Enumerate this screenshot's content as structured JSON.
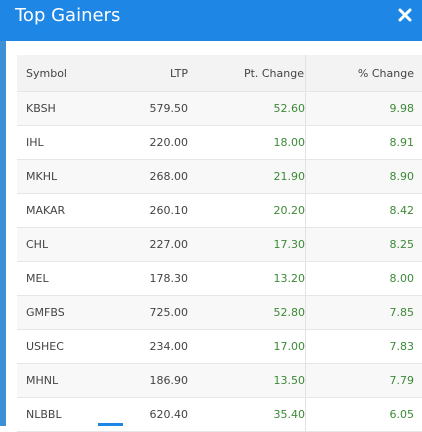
{
  "modal": {
    "title": "Top Gainers"
  },
  "colors": {
    "header": "#1e87e5",
    "gain": "#3c8a36"
  },
  "table": {
    "headers": [
      "Symbol",
      "LTP",
      "Pt. Change",
      "% Change"
    ],
    "rows": [
      [
        "KBSH",
        "579.50",
        "52.60",
        "9.98"
      ],
      [
        "IHL",
        "220.00",
        "18.00",
        "8.91"
      ],
      [
        "MKHL",
        "268.00",
        "21.90",
        "8.90"
      ],
      [
        "MAKAR",
        "260.10",
        "20.20",
        "8.42"
      ],
      [
        "CHL",
        "227.00",
        "17.30",
        "8.25"
      ],
      [
        "MEL",
        "178.30",
        "13.20",
        "8.00"
      ],
      [
        "GMFBS",
        "725.00",
        "52.80",
        "7.85"
      ],
      [
        "USHEC",
        "234.00",
        "17.00",
        "7.83"
      ],
      [
        "MHNL",
        "186.90",
        "13.50",
        "7.79"
      ],
      [
        "NLBBL",
        "620.40",
        "35.40",
        "6.05"
      ]
    ]
  }
}
